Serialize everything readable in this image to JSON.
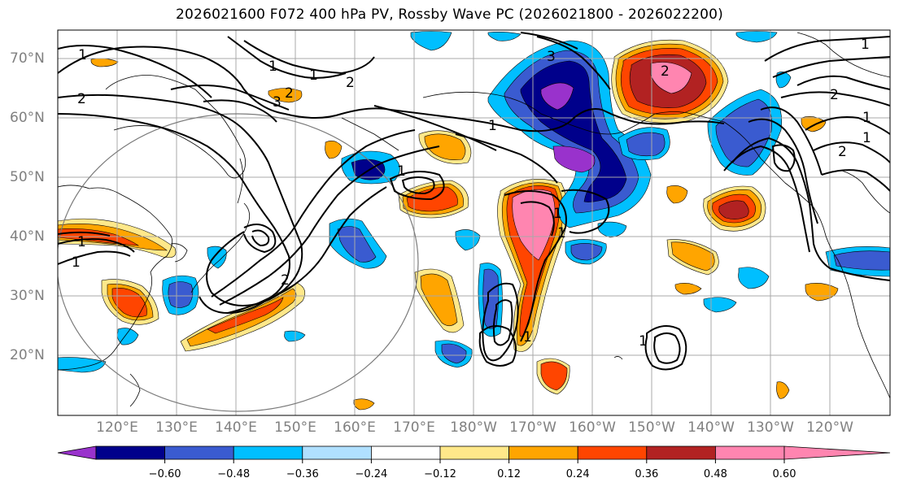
{
  "title": "2026021600 F072 400 hPa PV, Rossby Wave PC (2026021800 - 2026022200)",
  "lat_labels": [
    "70°N",
    "60°N",
    "50°N",
    "40°N",
    "30°N",
    "20°N"
  ],
  "lon_labels": [
    "120°E",
    "130°E",
    "140°E",
    "150°E",
    "160°E",
    "170°E",
    "180°W",
    "170°W",
    "160°W",
    "150°W",
    "140°W",
    "130°W",
    "120°W"
  ],
  "colorbar": {
    "ticks": [
      "−0.60",
      "−0.48",
      "−0.36",
      "−0.24",
      "−0.12",
      "0.12",
      "0.24",
      "0.36",
      "0.48",
      "0.60"
    ],
    "colors": [
      "#9932cc",
      "#00008b",
      "#3a5bd0",
      "#00bfff",
      "#b0e0ff",
      "#ffffff",
      "#ffe88a",
      "#ffa500",
      "#ff4500",
      "#b22222",
      "#ff85b0"
    ]
  },
  "contour_labels": [
    "1",
    "1",
    "2",
    "2",
    "3",
    "1",
    "3",
    "2",
    "2",
    "1",
    "1",
    "1",
    "1",
    "2",
    "1",
    "1",
    "1",
    "2",
    "1",
    "2",
    "1",
    "1",
    "1"
  ]
}
